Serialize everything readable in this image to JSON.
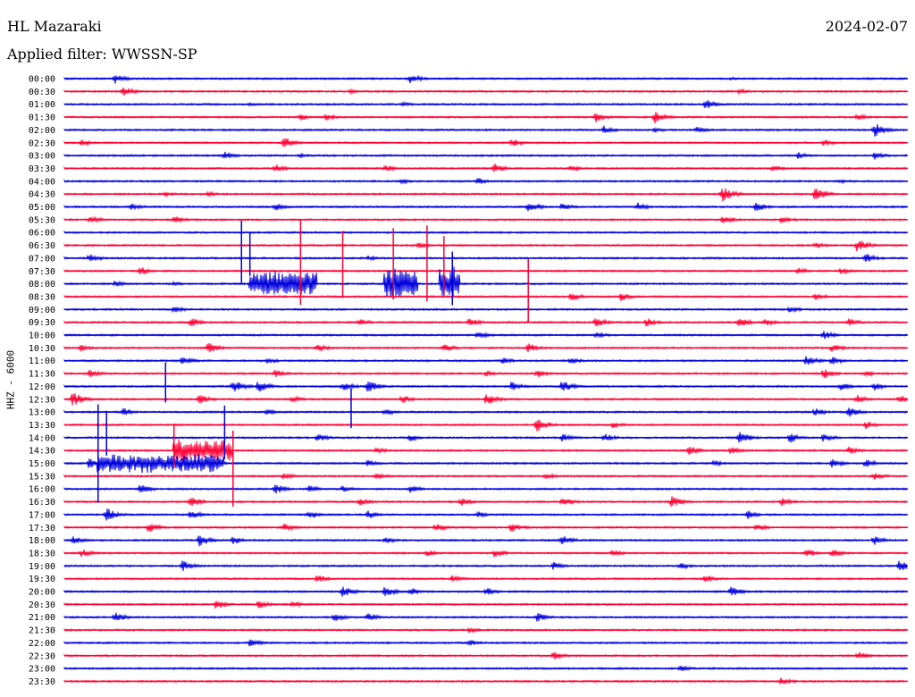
{
  "header": {
    "station": "HL Mazaraki",
    "date": "2024-02-07",
    "filter": "Applied filter: WWSSN-SP",
    "channel": "HHZ - 6000"
  },
  "colors": {
    "even_row": "#0000dd",
    "odd_row": "#ff0033"
  },
  "chart_data": {
    "type": "helicorder",
    "title": "HL Mazaraki",
    "ylabel": "HHZ - 6000",
    "rows": [
      "00:00",
      "00:30",
      "01:00",
      "01:30",
      "02:00",
      "02:30",
      "03:00",
      "03:30",
      "04:00",
      "04:30",
      "05:00",
      "05:30",
      "06:00",
      "06:30",
      "07:00",
      "07:30",
      "08:00",
      "08:30",
      "09:00",
      "09:30",
      "10:00",
      "10:30",
      "11:00",
      "11:30",
      "12:00",
      "12:30",
      "13:00",
      "13:30",
      "14:00",
      "14:30",
      "15:00",
      "15:30",
      "16:00",
      "16:30",
      "17:00",
      "17:30",
      "18:00",
      "18:30",
      "19:00",
      "19:30",
      "20:00",
      "20:30",
      "21:00",
      "21:30",
      "22:00",
      "22:30",
      "23:00",
      "23:30"
    ],
    "row_minutes": 30,
    "bursts": [
      {
        "row": 0,
        "x": 0.06,
        "amp": 6
      },
      {
        "row": 0,
        "x": 0.41,
        "amp": 6
      },
      {
        "row": 0,
        "x": 0.79,
        "amp": 2
      },
      {
        "row": 1,
        "x": 0.07,
        "amp": 6
      },
      {
        "row": 1,
        "x": 0.34,
        "amp": 3
      },
      {
        "row": 1,
        "x": 0.8,
        "amp": 3
      },
      {
        "row": 2,
        "x": 0.22,
        "amp": 2
      },
      {
        "row": 2,
        "x": 0.4,
        "amp": 3
      },
      {
        "row": 2,
        "x": 0.76,
        "amp": 6
      },
      {
        "row": 3,
        "x": 0.28,
        "amp": 4
      },
      {
        "row": 3,
        "x": 0.31,
        "amp": 4
      },
      {
        "row": 3,
        "x": 0.63,
        "amp": 6
      },
      {
        "row": 3,
        "x": 0.7,
        "amp": 7
      },
      {
        "row": 3,
        "x": 0.94,
        "amp": 4
      },
      {
        "row": 4,
        "x": 0.64,
        "amp": 5
      },
      {
        "row": 4,
        "x": 0.7,
        "amp": 3
      },
      {
        "row": 4,
        "x": 0.75,
        "amp": 4
      },
      {
        "row": 4,
        "x": 0.96,
        "amp": 9
      },
      {
        "row": 5,
        "x": 0.02,
        "amp": 4
      },
      {
        "row": 5,
        "x": 0.26,
        "amp": 7
      },
      {
        "row": 5,
        "x": 0.53,
        "amp": 5
      },
      {
        "row": 5,
        "x": 0.9,
        "amp": 4
      },
      {
        "row": 6,
        "x": 0.19,
        "amp": 5
      },
      {
        "row": 6,
        "x": 0.28,
        "amp": 3
      },
      {
        "row": 6,
        "x": 0.87,
        "amp": 4
      },
      {
        "row": 6,
        "x": 0.96,
        "amp": 5
      },
      {
        "row": 7,
        "x": 0.25,
        "amp": 5
      },
      {
        "row": 7,
        "x": 0.38,
        "amp": 4
      },
      {
        "row": 7,
        "x": 0.51,
        "amp": 6
      },
      {
        "row": 7,
        "x": 0.6,
        "amp": 4
      },
      {
        "row": 7,
        "x": 0.84,
        "amp": 4
      },
      {
        "row": 8,
        "x": 0.4,
        "amp": 3
      },
      {
        "row": 8,
        "x": 0.49,
        "amp": 4
      },
      {
        "row": 8,
        "x": 0.92,
        "amp": 3
      },
      {
        "row": 9,
        "x": 0.12,
        "amp": 3
      },
      {
        "row": 9,
        "x": 0.17,
        "amp": 3
      },
      {
        "row": 9,
        "x": 0.78,
        "amp": 9
      },
      {
        "row": 9,
        "x": 0.89,
        "amp": 8
      },
      {
        "row": 10,
        "x": 0.08,
        "amp": 4
      },
      {
        "row": 10,
        "x": 0.25,
        "amp": 5
      },
      {
        "row": 10,
        "x": 0.55,
        "amp": 7
      },
      {
        "row": 10,
        "x": 0.59,
        "amp": 5
      },
      {
        "row": 10,
        "x": 0.68,
        "amp": 5
      },
      {
        "row": 10,
        "x": 0.82,
        "amp": 6
      },
      {
        "row": 11,
        "x": 0.03,
        "amp": 5
      },
      {
        "row": 11,
        "x": 0.13,
        "amp": 5
      },
      {
        "row": 11,
        "x": 0.78,
        "amp": 6
      },
      {
        "row": 11,
        "x": 0.85,
        "amp": 5
      },
      {
        "row": 13,
        "x": 0.42,
        "amp": 4
      },
      {
        "row": 13,
        "x": 0.89,
        "amp": 4
      },
      {
        "row": 13,
        "x": 0.94,
        "amp": 8
      },
      {
        "row": 14,
        "x": 0.03,
        "amp": 6
      },
      {
        "row": 14,
        "x": 0.36,
        "amp": 3
      },
      {
        "row": 14,
        "x": 0.95,
        "amp": 6
      },
      {
        "row": 15,
        "x": 0.09,
        "amp": 5
      },
      {
        "row": 15,
        "x": 0.87,
        "amp": 4
      },
      {
        "row": 15,
        "x": 0.92,
        "amp": 4
      },
      {
        "row": 16,
        "x": 0.06,
        "amp": 4
      },
      {
        "row": 16,
        "x": 0.13,
        "amp": 3
      },
      {
        "row": 17,
        "x": 0.6,
        "amp": 6
      },
      {
        "row": 17,
        "x": 0.66,
        "amp": 5
      },
      {
        "row": 17,
        "x": 0.89,
        "amp": 5
      },
      {
        "row": 18,
        "x": 0.13,
        "amp": 5
      },
      {
        "row": 18,
        "x": 0.86,
        "amp": 4
      },
      {
        "row": 19,
        "x": 0.15,
        "amp": 6
      },
      {
        "row": 19,
        "x": 0.35,
        "amp": 4
      },
      {
        "row": 19,
        "x": 0.48,
        "amp": 5
      },
      {
        "row": 19,
        "x": 0.63,
        "amp": 6
      },
      {
        "row": 19,
        "x": 0.69,
        "amp": 5
      },
      {
        "row": 19,
        "x": 0.8,
        "amp": 6
      },
      {
        "row": 19,
        "x": 0.83,
        "amp": 5
      },
      {
        "row": 19,
        "x": 0.93,
        "amp": 5
      },
      {
        "row": 20,
        "x": 0.49,
        "amp": 5
      },
      {
        "row": 20,
        "x": 0.63,
        "amp": 4
      },
      {
        "row": 20,
        "x": 0.9,
        "amp": 5
      },
      {
        "row": 21,
        "x": 0.02,
        "amp": 4
      },
      {
        "row": 21,
        "x": 0.17,
        "amp": 7
      },
      {
        "row": 21,
        "x": 0.3,
        "amp": 5
      },
      {
        "row": 21,
        "x": 0.45,
        "amp": 5
      },
      {
        "row": 21,
        "x": 0.55,
        "amp": 6
      },
      {
        "row": 21,
        "x": 0.91,
        "amp": 5
      },
      {
        "row": 22,
        "x": 0.14,
        "amp": 6
      },
      {
        "row": 22,
        "x": 0.24,
        "amp": 4
      },
      {
        "row": 22,
        "x": 0.52,
        "amp": 4
      },
      {
        "row": 22,
        "x": 0.6,
        "amp": 4
      },
      {
        "row": 22,
        "x": 0.88,
        "amp": 7
      },
      {
        "row": 22,
        "x": 0.91,
        "amp": 5
      },
      {
        "row": 23,
        "x": 0.03,
        "amp": 5
      },
      {
        "row": 23,
        "x": 0.25,
        "amp": 5
      },
      {
        "row": 23,
        "x": 0.5,
        "amp": 4
      },
      {
        "row": 23,
        "x": 0.56,
        "amp": 5
      },
      {
        "row": 23,
        "x": 0.9,
        "amp": 6
      },
      {
        "row": 23,
        "x": 0.95,
        "amp": 4
      },
      {
        "row": 24,
        "x": 0.2,
        "amp": 8
      },
      {
        "row": 24,
        "x": 0.23,
        "amp": 7
      },
      {
        "row": 24,
        "x": 0.33,
        "amp": 6
      },
      {
        "row": 24,
        "x": 0.36,
        "amp": 8
      },
      {
        "row": 24,
        "x": 0.53,
        "amp": 6
      },
      {
        "row": 24,
        "x": 0.59,
        "amp": 7
      },
      {
        "row": 24,
        "x": 0.92,
        "amp": 5
      },
      {
        "row": 24,
        "x": 0.96,
        "amp": 5
      },
      {
        "row": 25,
        "x": 0.01,
        "amp": 9
      },
      {
        "row": 25,
        "x": 0.16,
        "amp": 6
      },
      {
        "row": 25,
        "x": 0.27,
        "amp": 4
      },
      {
        "row": 25,
        "x": 0.4,
        "amp": 5
      },
      {
        "row": 25,
        "x": 0.5,
        "amp": 8
      },
      {
        "row": 25,
        "x": 0.94,
        "amp": 5
      },
      {
        "row": 25,
        "x": 0.99,
        "amp": 5
      },
      {
        "row": 26,
        "x": 0.07,
        "amp": 5
      },
      {
        "row": 26,
        "x": 0.24,
        "amp": 4
      },
      {
        "row": 26,
        "x": 0.38,
        "amp": 4
      },
      {
        "row": 26,
        "x": 0.89,
        "amp": 5
      },
      {
        "row": 26,
        "x": 0.93,
        "amp": 7
      },
      {
        "row": 27,
        "x": 0.56,
        "amp": 8
      },
      {
        "row": 27,
        "x": 0.65,
        "amp": 4
      },
      {
        "row": 27,
        "x": 0.95,
        "amp": 5
      },
      {
        "row": 28,
        "x": 0.3,
        "amp": 5
      },
      {
        "row": 28,
        "x": 0.41,
        "amp": 4
      },
      {
        "row": 28,
        "x": 0.59,
        "amp": 5
      },
      {
        "row": 28,
        "x": 0.64,
        "amp": 5
      },
      {
        "row": 28,
        "x": 0.8,
        "amp": 8
      },
      {
        "row": 28,
        "x": 0.86,
        "amp": 6
      },
      {
        "row": 28,
        "x": 0.9,
        "amp": 5
      },
      {
        "row": 29,
        "x": 0.37,
        "amp": 4
      },
      {
        "row": 29,
        "x": 0.74,
        "amp": 6
      },
      {
        "row": 29,
        "x": 0.79,
        "amp": 5
      },
      {
        "row": 29,
        "x": 0.93,
        "amp": 5
      },
      {
        "row": 30,
        "x": 0.03,
        "amp": 8
      },
      {
        "row": 30,
        "x": 0.17,
        "amp": 7
      },
      {
        "row": 30,
        "x": 0.36,
        "amp": 4
      },
      {
        "row": 30,
        "x": 0.77,
        "amp": 4
      },
      {
        "row": 30,
        "x": 0.91,
        "amp": 5
      },
      {
        "row": 30,
        "x": 0.95,
        "amp": 5
      },
      {
        "row": 31,
        "x": 0.26,
        "amp": 4
      },
      {
        "row": 31,
        "x": 0.37,
        "amp": 4
      },
      {
        "row": 31,
        "x": 0.57,
        "amp": 4
      },
      {
        "row": 31,
        "x": 0.96,
        "amp": 5
      },
      {
        "row": 32,
        "x": 0.09,
        "amp": 6
      },
      {
        "row": 32,
        "x": 0.25,
        "amp": 6
      },
      {
        "row": 32,
        "x": 0.29,
        "amp": 5
      },
      {
        "row": 32,
        "x": 0.33,
        "amp": 4
      },
      {
        "row": 32,
        "x": 0.41,
        "amp": 5
      },
      {
        "row": 33,
        "x": 0.15,
        "amp": 6
      },
      {
        "row": 33,
        "x": 0.35,
        "amp": 5
      },
      {
        "row": 33,
        "x": 0.47,
        "amp": 5
      },
      {
        "row": 33,
        "x": 0.59,
        "amp": 6
      },
      {
        "row": 33,
        "x": 0.72,
        "amp": 7
      },
      {
        "row": 33,
        "x": 0.85,
        "amp": 5
      },
      {
        "row": 34,
        "x": 0.05,
        "amp": 8
      },
      {
        "row": 34,
        "x": 0.15,
        "amp": 6
      },
      {
        "row": 34,
        "x": 0.29,
        "amp": 5
      },
      {
        "row": 34,
        "x": 0.36,
        "amp": 5
      },
      {
        "row": 34,
        "x": 0.49,
        "amp": 4
      },
      {
        "row": 34,
        "x": 0.81,
        "amp": 5
      },
      {
        "row": 35,
        "x": 0.1,
        "amp": 6
      },
      {
        "row": 35,
        "x": 0.26,
        "amp": 5
      },
      {
        "row": 35,
        "x": 0.44,
        "amp": 5
      },
      {
        "row": 35,
        "x": 0.53,
        "amp": 6
      },
      {
        "row": 35,
        "x": 0.82,
        "amp": 5
      },
      {
        "row": 36,
        "x": 0.01,
        "amp": 5
      },
      {
        "row": 36,
        "x": 0.16,
        "amp": 7
      },
      {
        "row": 36,
        "x": 0.2,
        "amp": 5
      },
      {
        "row": 36,
        "x": 0.38,
        "amp": 4
      },
      {
        "row": 36,
        "x": 0.59,
        "amp": 6
      },
      {
        "row": 36,
        "x": 0.96,
        "amp": 6
      },
      {
        "row": 37,
        "x": 0.02,
        "amp": 5
      },
      {
        "row": 37,
        "x": 0.43,
        "amp": 4
      },
      {
        "row": 37,
        "x": 0.51,
        "amp": 5
      },
      {
        "row": 37,
        "x": 0.65,
        "amp": 4
      },
      {
        "row": 37,
        "x": 0.88,
        "amp": 5
      },
      {
        "row": 37,
        "x": 0.91,
        "amp": 5
      },
      {
        "row": 38,
        "x": 0.14,
        "amp": 6
      },
      {
        "row": 38,
        "x": 0.58,
        "amp": 5
      },
      {
        "row": 38,
        "x": 0.73,
        "amp": 4
      },
      {
        "row": 38,
        "x": 0.99,
        "amp": 7
      },
      {
        "row": 39,
        "x": 0.3,
        "amp": 5
      },
      {
        "row": 39,
        "x": 0.46,
        "amp": 4
      },
      {
        "row": 39,
        "x": 0.76,
        "amp": 5
      },
      {
        "row": 40,
        "x": 0.33,
        "amp": 7
      },
      {
        "row": 40,
        "x": 0.38,
        "amp": 6
      },
      {
        "row": 40,
        "x": 0.41,
        "amp": 5
      },
      {
        "row": 40,
        "x": 0.5,
        "amp": 5
      },
      {
        "row": 40,
        "x": 0.79,
        "amp": 6
      },
      {
        "row": 41,
        "x": 0.18,
        "amp": 6
      },
      {
        "row": 41,
        "x": 0.23,
        "amp": 5
      },
      {
        "row": 41,
        "x": 0.27,
        "amp": 4
      },
      {
        "row": 42,
        "x": 0.06,
        "amp": 6
      },
      {
        "row": 42,
        "x": 0.32,
        "amp": 5
      },
      {
        "row": 42,
        "x": 0.36,
        "amp": 5
      },
      {
        "row": 42,
        "x": 0.56,
        "amp": 6
      },
      {
        "row": 43,
        "x": 0.48,
        "amp": 4
      },
      {
        "row": 44,
        "x": 0.22,
        "amp": 5
      },
      {
        "row": 44,
        "x": 0.48,
        "amp": 4
      },
      {
        "row": 45,
        "x": 0.58,
        "amp": 5
      },
      {
        "row": 45,
        "x": 0.94,
        "amp": 5
      },
      {
        "row": 46,
        "x": 0.73,
        "amp": 4
      },
      {
        "row": 47,
        "x": 0.85,
        "amp": 5
      }
    ],
    "sustained": [
      {
        "row": 16,
        "start": 0.22,
        "end": 0.3,
        "amp": 15
      },
      {
        "row": 16,
        "start": 0.38,
        "end": 0.42,
        "amp": 18
      },
      {
        "row": 16,
        "start": 0.445,
        "end": 0.47,
        "amp": 22
      },
      {
        "row": 30,
        "start": 0.04,
        "end": 0.19,
        "amp": 11
      },
      {
        "row": 29,
        "start": 0.13,
        "end": 0.2,
        "amp": 14
      }
    ],
    "spikes": [
      {
        "row": 14,
        "x": 0.21,
        "height": 70
      },
      {
        "row": 14,
        "x": 0.22,
        "height": 50
      },
      {
        "row": 15,
        "x": 0.28,
        "height": 95
      },
      {
        "row": 15,
        "x": 0.33,
        "height": 75
      },
      {
        "row": 15,
        "x": 0.39,
        "height": 80
      },
      {
        "row": 15,
        "x": 0.43,
        "height": 85
      },
      {
        "row": 15,
        "x": 0.45,
        "height": 65
      },
      {
        "row": 16,
        "x": 0.46,
        "height": 60
      },
      {
        "row": 17,
        "x": 0.55,
        "height": 70
      },
      {
        "row": 29,
        "x": 0.04,
        "height": 60
      },
      {
        "row": 28,
        "x": 0.05,
        "height": 50
      },
      {
        "row": 30,
        "x": 0.04,
        "height": 110
      },
      {
        "row": 29,
        "x": 0.13,
        "height": 50
      },
      {
        "row": 28,
        "x": 0.19,
        "height": 60
      },
      {
        "row": 31,
        "x": 0.2,
        "height": 85
      },
      {
        "row": 24,
        "x": 0.12,
        "height": 45
      },
      {
        "row": 26,
        "x": 0.34,
        "height": 45
      }
    ]
  }
}
